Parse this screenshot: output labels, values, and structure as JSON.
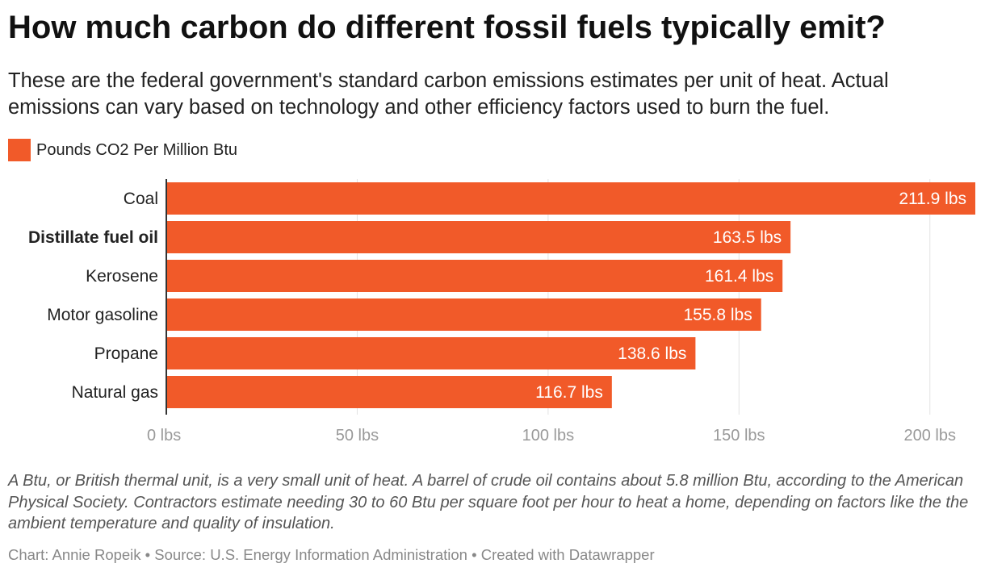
{
  "header": {
    "title": "How much carbon do different fossil fuels typically emit?",
    "subtitle": "These are the federal government's standard carbon emissions estimates per unit of heat. Actual emissions can vary based on technology and other efficiency factors used to burn the fuel."
  },
  "legend": {
    "label": "Pounds CO2 Per Million Btu",
    "color": "#f15a29"
  },
  "chart_data": {
    "type": "bar",
    "orientation": "horizontal",
    "title": "How much carbon do different fossil fuels typically emit?",
    "categories": [
      "Coal",
      "Distillate fuel oil",
      "Kerosene",
      "Motor gasoline",
      "Propane",
      "Natural gas"
    ],
    "bold_category": "Distillate fuel oil",
    "series": [
      {
        "name": "Pounds CO2 Per Million Btu",
        "values": [
          211.9,
          163.5,
          161.4,
          155.8,
          138.6,
          116.7
        ],
        "labels": [
          "211.9 lbs",
          "163.5 lbs",
          "161.4 lbs",
          "155.8 lbs",
          "138.6 lbs",
          "116.7 lbs"
        ]
      }
    ],
    "xlim": [
      0,
      211.9
    ],
    "xticks": [
      0,
      50,
      100,
      150,
      200
    ],
    "xtick_labels": [
      "0 lbs",
      "50 lbs",
      "100 lbs",
      "150 lbs",
      "200 lbs"
    ],
    "xlabel": "",
    "ylabel": "",
    "grid": true,
    "bar_color": "#f15a29"
  },
  "footer": {
    "notes": "A Btu, or British thermal unit, is a very small unit of heat. A barrel of crude oil contains about 5.8 million Btu, according to the American Physical Society. Contractors estimate needing 30 to 60 Btu per square foot per hour to heat a home, depending on factors like the the ambient temperature and quality of insulation.",
    "byline": "Chart: Annie Ropeik • Source: U.S. Energy Information Administration • Created with Datawrapper"
  }
}
